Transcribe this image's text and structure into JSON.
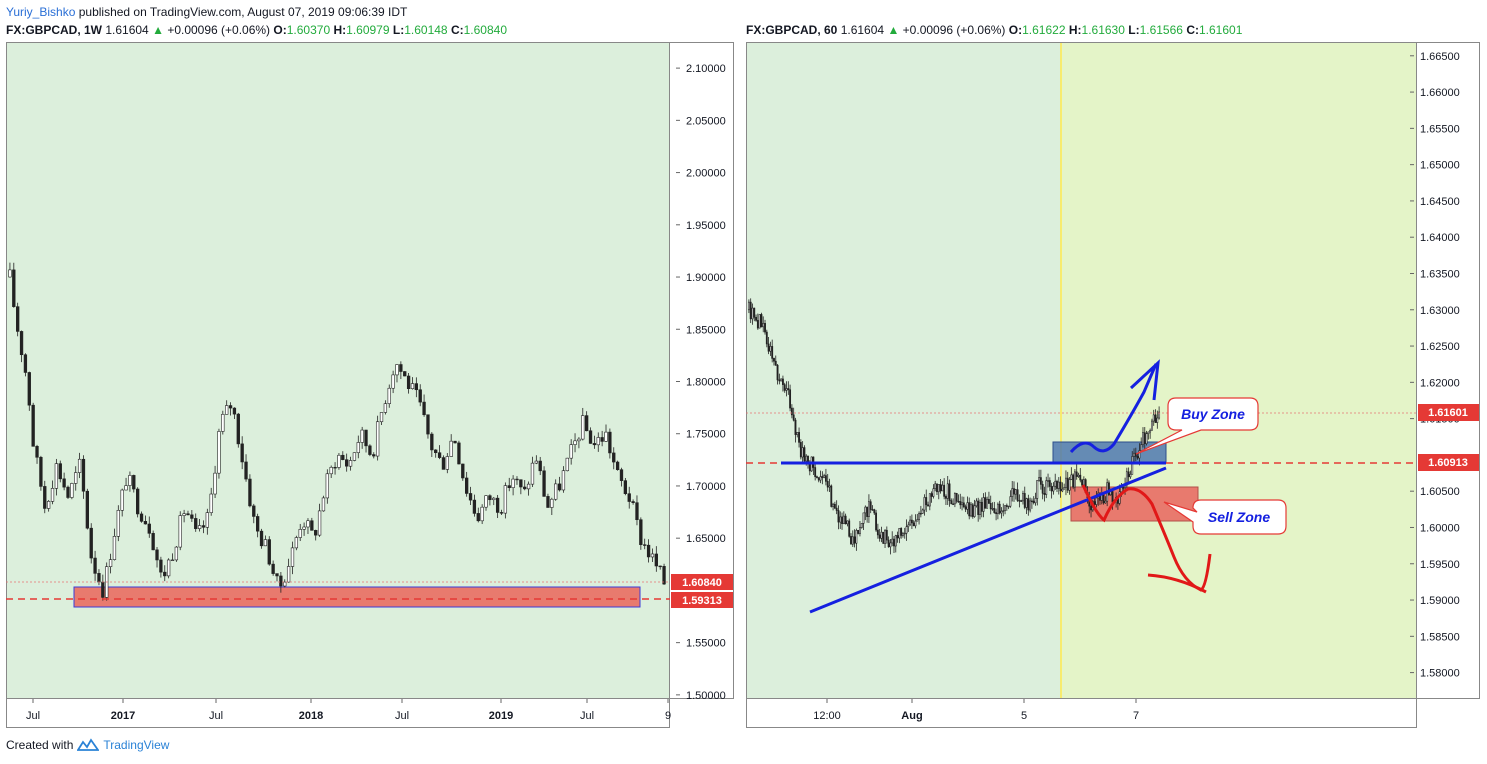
{
  "header": {
    "user": "Yuriy_Bishko",
    "published": "published on TradingView.com, August 07, 2019 09:06:39 IDT"
  },
  "left_legend": {
    "symbol": "FX:GBPCAD, 1W",
    "price": "1.61604",
    "change": "+0.00096 (+0.06%)",
    "o": "1.60370",
    "h": "1.60979",
    "l": "1.60148",
    "c": "1.60840"
  },
  "right_legend": {
    "symbol": "FX:GBPCAD, 60",
    "price": "1.61604",
    "change": "+0.00096 (+0.06%)",
    "o": "1.61622",
    "h": "1.61630",
    "l": "1.61566",
    "c": "1.61601"
  },
  "footer": {
    "created": "Created with",
    "brand": "TradingView"
  },
  "colors": {
    "chart_bg": "#dcefdc",
    "future_bg": "#e4f4c8",
    "up_arrow": "#22ab3c",
    "red_zone": "#e87a6e",
    "blue_zone": "#4f78b0",
    "price_red": "#e53935",
    "line_blue": "#1520e0"
  },
  "chart_data": [
    {
      "type": "candlestick",
      "symbol": "FX:GBPCAD",
      "timeframe": "1W",
      "x_tick_labels": [
        "Jul",
        "2017",
        "Jul",
        "2018",
        "Jul",
        "2019",
        "Jul",
        "9"
      ],
      "y_tick_labels": [
        "2.10000",
        "2.05000",
        "2.00000",
        "1.95000",
        "1.90000",
        "1.85000",
        "1.80000",
        "1.75000",
        "1.70000",
        "1.65000",
        "1.55000",
        "1.50000"
      ],
      "y_ticks": [
        2.1,
        2.05,
        2.0,
        1.95,
        1.9,
        1.85,
        1.8,
        1.75,
        1.7,
        1.65,
        1.55,
        1.5
      ],
      "ylim": [
        1.497,
        2.125
      ],
      "path": [
        [
          0,
          1.9
        ],
        [
          0.5,
          1.86
        ],
        [
          1.5,
          1.8
        ],
        [
          2,
          1.74
        ],
        [
          3,
          1.68
        ],
        [
          4,
          1.72
        ],
        [
          5,
          1.69
        ],
        [
          6,
          1.72
        ],
        [
          7,
          1.63
        ],
        [
          8,
          1.6
        ],
        [
          9,
          1.66
        ],
        [
          10,
          1.71
        ],
        [
          11,
          1.68
        ],
        [
          12,
          1.66
        ],
        [
          13,
          1.61
        ],
        [
          14,
          1.64
        ],
        [
          15,
          1.68
        ],
        [
          16,
          1.65
        ],
        [
          17,
          1.67
        ],
        [
          18,
          1.76
        ],
        [
          19,
          1.78
        ],
        [
          20,
          1.72
        ],
        [
          21,
          1.66
        ],
        [
          22,
          1.64
        ],
        [
          23,
          1.6
        ],
        [
          24,
          1.63
        ],
        [
          25,
          1.67
        ],
        [
          26,
          1.65
        ],
        [
          27,
          1.7
        ],
        [
          28,
          1.73
        ],
        [
          29,
          1.72
        ],
        [
          30,
          1.75
        ],
        [
          31,
          1.73
        ],
        [
          32,
          1.78
        ],
        [
          33,
          1.82
        ],
        [
          34,
          1.8
        ],
        [
          35,
          1.78
        ],
        [
          36,
          1.74
        ],
        [
          37,
          1.72
        ],
        [
          38,
          1.75
        ],
        [
          39,
          1.7
        ],
        [
          40,
          1.67
        ],
        [
          41,
          1.69
        ],
        [
          42,
          1.68
        ],
        [
          43,
          1.71
        ],
        [
          44,
          1.69
        ],
        [
          45,
          1.73
        ],
        [
          46,
          1.68
        ],
        [
          47,
          1.7
        ],
        [
          48,
          1.73
        ],
        [
          49,
          1.76
        ],
        [
          50,
          1.74
        ],
        [
          51,
          1.75
        ],
        [
          52,
          1.71
        ],
        [
          53,
          1.69
        ],
        [
          54,
          1.65
        ],
        [
          55,
          1.63
        ],
        [
          56,
          1.608
        ]
      ],
      "x_domain": [
        0,
        56
      ],
      "last_price": {
        "value": 1.6084,
        "label": "1.60840"
      },
      "support_line": {
        "value": 1.59313,
        "label": "1.59313"
      },
      "support_zone": [
        1.584,
        1.605
      ]
    },
    {
      "type": "candlestick",
      "symbol": "FX:GBPCAD",
      "timeframe": "60",
      "x_tick_labels": [
        "12:00",
        "Aug",
        "5",
        "7"
      ],
      "y_tick_labels": [
        "1.66500",
        "1.66000",
        "1.65500",
        "1.65000",
        "1.64500",
        "1.64000",
        "1.63500",
        "1.63000",
        "1.62500",
        "1.62000",
        "1.61500",
        "1.60500",
        "1.60000",
        "1.59500",
        "1.59000",
        "1.58500",
        "1.58000"
      ],
      "y_ticks": [
        1.665,
        1.66,
        1.655,
        1.65,
        1.645,
        1.64,
        1.635,
        1.63,
        1.625,
        1.62,
        1.615,
        1.605,
        1.6,
        1.595,
        1.59,
        1.585,
        1.58
      ],
      "ylim": [
        1.5765,
        1.6669
      ],
      "path": [
        [
          0,
          1.63
        ],
        [
          1,
          1.628
        ],
        [
          2,
          1.622
        ],
        [
          3,
          1.618
        ],
        [
          4,
          1.61
        ],
        [
          5,
          1.608
        ],
        [
          6,
          1.605
        ],
        [
          7,
          1.601
        ],
        [
          8,
          1.598
        ],
        [
          9,
          1.603
        ],
        [
          10,
          1.599
        ],
        [
          11,
          1.598
        ],
        [
          12,
          1.6
        ],
        [
          13,
          1.602
        ],
        [
          14,
          1.606
        ],
        [
          15,
          1.605
        ],
        [
          16,
          1.603
        ],
        [
          17,
          1.602
        ],
        [
          18,
          1.604
        ],
        [
          19,
          1.602
        ],
        [
          20,
          1.605
        ],
        [
          21,
          1.603
        ],
        [
          22,
          1.606
        ],
        [
          23,
          1.605
        ],
        [
          24,
          1.606
        ],
        [
          25,
          1.607
        ],
        [
          26,
          1.603
        ],
        [
          27,
          1.605
        ],
        [
          28,
          1.604
        ],
        [
          29,
          1.609
        ],
        [
          30,
          1.613
        ],
        [
          31,
          1.616
        ]
      ],
      "x_domain": [
        0,
        31
      ],
      "last_price": {
        "value": 1.61601,
        "label": "1.61601"
      },
      "level_line": {
        "value": 1.60913,
        "label": "1.60913"
      },
      "annotations": {
        "buy": "Buy Zone",
        "sell": "Sell Zone"
      }
    }
  ]
}
